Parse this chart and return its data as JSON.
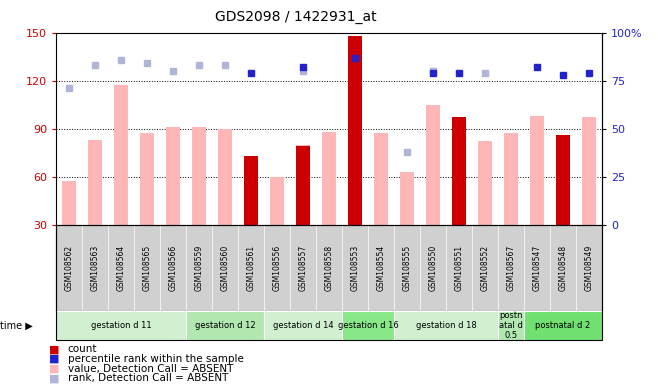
{
  "title": "GDS2098 / 1422931_at",
  "samples": [
    "GSM108562",
    "GSM108563",
    "GSM108564",
    "GSM108565",
    "GSM108566",
    "GSM108559",
    "GSM108560",
    "GSM108561",
    "GSM108556",
    "GSM108557",
    "GSM108558",
    "GSM108553",
    "GSM108554",
    "GSM108555",
    "GSM108550",
    "GSM108551",
    "GSM108552",
    "GSM108567",
    "GSM108547",
    "GSM108548",
    "GSM108549"
  ],
  "count_values": [
    null,
    null,
    null,
    null,
    null,
    null,
    null,
    73,
    null,
    79,
    null,
    148,
    null,
    null,
    null,
    97,
    null,
    null,
    null,
    86,
    null
  ],
  "absent_value": [
    57,
    83,
    117,
    87,
    91,
    91,
    90,
    28,
    60,
    80,
    88,
    null,
    87,
    63,
    105,
    null,
    82,
    87,
    98,
    null,
    97
  ],
  "rank_absent": [
    71,
    83,
    86,
    84,
    80,
    83,
    83,
    null,
    null,
    80,
    null,
    null,
    null,
    38,
    80,
    null,
    79,
    null,
    null,
    null,
    null
  ],
  "rank_present": [
    null,
    null,
    null,
    null,
    null,
    null,
    null,
    79,
    null,
    82,
    null,
    87,
    null,
    null,
    79,
    79,
    null,
    null,
    82,
    78,
    79
  ],
  "groups": [
    {
      "label": "gestation d 11",
      "start": 0,
      "end": 4,
      "color": "#d0f0d0"
    },
    {
      "label": "gestation d 12",
      "start": 5,
      "end": 7,
      "color": "#b0e8b0"
    },
    {
      "label": "gestation d 14",
      "start": 8,
      "end": 10,
      "color": "#d0f0d0"
    },
    {
      "label": "gestation d 16",
      "start": 11,
      "end": 12,
      "color": "#88e888"
    },
    {
      "label": "gestation d 18",
      "start": 13,
      "end": 16,
      "color": "#d0f0d0"
    },
    {
      "label": "postn\natal d\n0.5",
      "start": 17,
      "end": 17,
      "color": "#b0e8b0"
    },
    {
      "label": "postnatal d 2",
      "start": 18,
      "end": 20,
      "color": "#70e070"
    }
  ],
  "ylim_left": [
    30,
    150
  ],
  "ylim_right": [
    0,
    100
  ],
  "yticks_left": [
    30,
    60,
    90,
    120,
    150
  ],
  "yticks_right": [
    0,
    25,
    50,
    75,
    100
  ],
  "bar_color_count": "#cc0000",
  "bar_color_absent": "#ffb6b6",
  "dot_color_absent": "#b0b4d8",
  "dot_color_present": "#2222cc",
  "bg": "#ffffff",
  "tick_color_left": "#cc0000",
  "tick_color_right": "#2222cc",
  "sample_band_color": "#d0d0d0",
  "legend_items": [
    {
      "color": "#cc0000",
      "label": "count"
    },
    {
      "color": "#2222cc",
      "label": "percentile rank within the sample"
    },
    {
      "color": "#ffb6b6",
      "label": "value, Detection Call = ABSENT"
    },
    {
      "color": "#b0b4d8",
      "label": "rank, Detection Call = ABSENT"
    }
  ]
}
